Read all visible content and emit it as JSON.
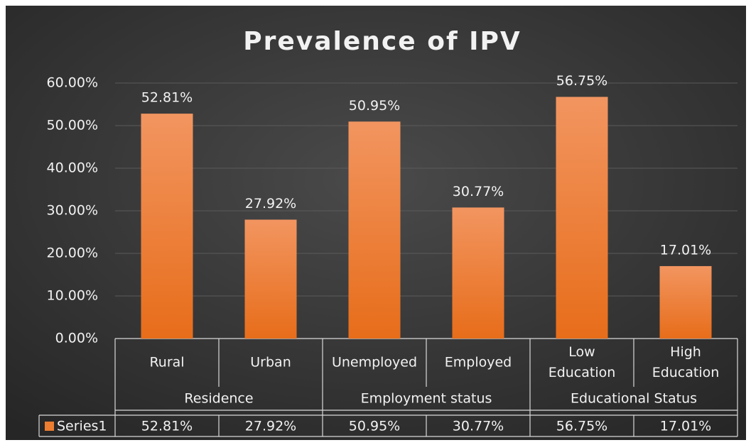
{
  "chart_data": {
    "type": "bar",
    "title": "Prevalence of IPV",
    "categories": [
      "Rural",
      "Urban",
      "Unemployed",
      "Employed",
      "Low Education",
      "High Education"
    ],
    "groups": [
      "Residence",
      "Employment status",
      "Educational Status"
    ],
    "series": [
      {
        "name": "Series1",
        "color": "#ed7d31",
        "values": [
          52.81,
          27.92,
          50.95,
          30.77,
          56.75,
          17.01
        ],
        "value_labels": [
          "52.81%",
          "27.92%",
          "50.95%",
          "30.77%",
          "56.75%",
          "17.01%"
        ]
      }
    ],
    "ylim": [
      0,
      60
    ],
    "yticks": [
      {
        "value": 0,
        "label": "0.00%"
      },
      {
        "value": 10,
        "label": "10.00%"
      },
      {
        "value": 20,
        "label": "20.00%"
      },
      {
        "value": 30,
        "label": "30.00%"
      },
      {
        "value": 40,
        "label": "40.00%"
      },
      {
        "value": 50,
        "label": "50.00%"
      },
      {
        "value": 60,
        "label": "60.00%"
      }
    ],
    "grid": true
  }
}
